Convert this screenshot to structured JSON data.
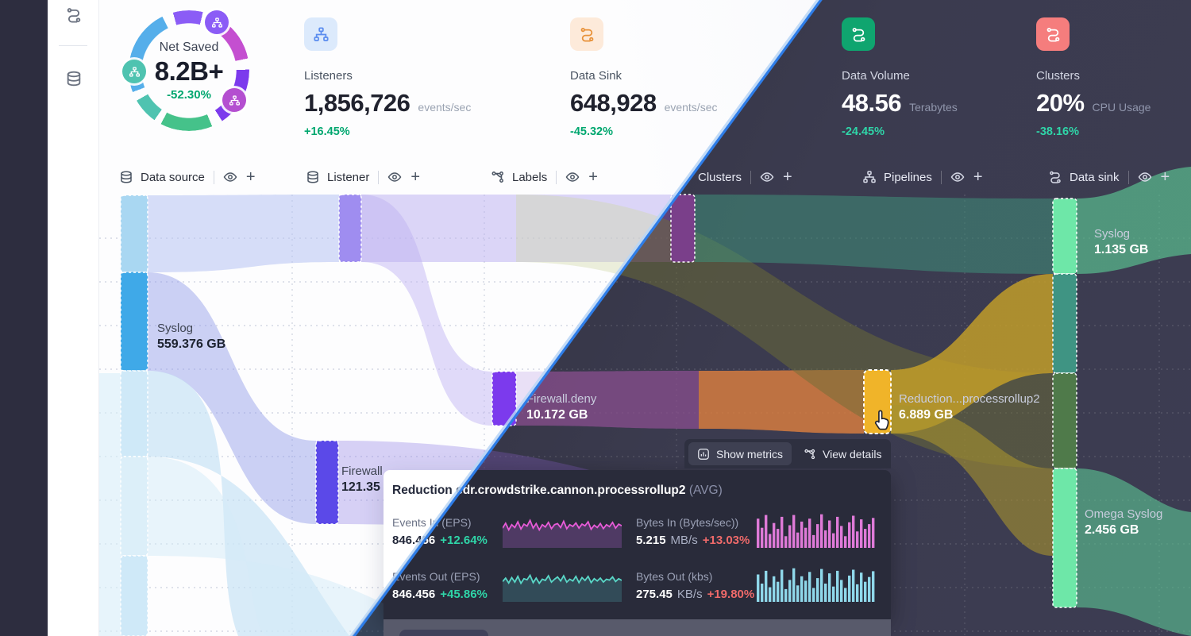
{
  "colors": {
    "positive_light": "#00a76f",
    "positive_dark": "#2fd5a8",
    "negative": "#ef6a6a",
    "split_line_blue": "#2e7de8",
    "highlight_gold": "#f0b429"
  },
  "sidebar": {
    "icons": [
      "route-icon",
      "database-icon"
    ]
  },
  "stats": {
    "net_saved": {
      "label": "Net Saved",
      "value": "8.2B+",
      "delta": "-52.30%"
    },
    "cards": [
      {
        "label": "Listeners",
        "value": "1,856,726",
        "unit": "events/sec",
        "delta": "+16.45%"
      },
      {
        "label": "Data Sink",
        "value": "648,928",
        "unit": "events/sec",
        "delta": "-45.32%"
      },
      {
        "label": "Data Volume",
        "value": "48.56",
        "unit": "Terabytes",
        "delta": "-24.45%"
      },
      {
        "label": "Clusters",
        "value": "20%",
        "unit": "CPU Usage",
        "delta": "-38.16%"
      }
    ]
  },
  "toolbar": {
    "items": [
      {
        "label": "Data source",
        "icon": "database-icon"
      },
      {
        "label": "Listener",
        "icon": "database-icon"
      },
      {
        "label": "Labels",
        "icon": "branch-icon"
      },
      {
        "label": "Clusters",
        "icon": "database-icon"
      },
      {
        "label": "Pipelines",
        "icon": "sitemap-icon"
      },
      {
        "label": "Data sink",
        "icon": "route-icon"
      }
    ]
  },
  "sankey": {
    "nodes": [
      {
        "name": "Syslog",
        "value": "559.376 GB"
      },
      {
        "name": "Firewall",
        "value": "121.35 GB"
      },
      {
        "name": "Firewall.deny",
        "value": "10.172 GB"
      },
      {
        "name": "Reduction...processrollup2",
        "value": "6.889 GB"
      },
      {
        "name": "Syslog",
        "value": "1.135 GB"
      },
      {
        "name": "Omega Syslog",
        "value": "2.456 GB"
      }
    ]
  },
  "tooltip": {
    "show_metrics": "Show metrics",
    "view_details": "View details"
  },
  "panel": {
    "title": "Reduction edr.crowdstrike.cannon.processrollup2",
    "title_suffix": "(AVG)",
    "metrics": [
      {
        "label": "Events In (EPS)",
        "value": "846.456",
        "unit": "",
        "delta": "+12.64%"
      },
      {
        "label": "Bytes In (Bytes/sec))",
        "value": "5.215",
        "unit": "MB/s",
        "delta": "+13.03%"
      },
      {
        "label": "Events Out (EPS)",
        "value": "846.456",
        "unit": "",
        "delta": "+45.86%"
      },
      {
        "label": "Bytes Out (kbs)",
        "value": "275.45",
        "unit": "KB/s",
        "delta": "+19.80%"
      }
    ]
  },
  "sparks": {
    "events_in": {
      "type": "line",
      "color": "#e85bd8",
      "fill": "rgba(168,92,200,0.30)",
      "values": [
        58,
        75,
        52,
        70,
        60,
        80,
        55,
        72,
        65,
        85,
        58,
        74,
        52,
        70,
        62,
        78,
        56,
        70,
        74,
        60,
        82,
        56,
        70,
        64,
        76,
        58,
        72,
        66,
        80,
        54,
        68,
        60,
        74,
        56,
        70,
        63,
        78,
        58,
        72,
        66
      ]
    },
    "bytes_in": {
      "type": "bars",
      "color": "#df7ad8",
      "values": [
        80,
        55,
        90,
        38,
        68,
        52,
        85,
        32,
        62,
        90,
        42,
        72,
        55,
        80,
        35,
        65,
        92,
        48,
        75,
        40,
        85,
        60,
        32,
        70,
        88,
        45,
        78,
        52,
        65,
        82
      ]
    },
    "events_out": {
      "type": "line",
      "color": "#5ad8c8",
      "fill": "rgba(80,170,180,0.25)",
      "values": [
        60,
        72,
        55,
        74,
        58,
        78,
        54,
        70,
        66,
        82,
        56,
        72,
        54,
        68,
        64,
        80,
        58,
        68,
        76,
        62,
        80,
        58,
        68,
        62,
        78,
        56,
        74,
        64,
        78,
        56,
        70,
        62,
        72,
        58,
        68,
        65,
        76,
        60,
        70,
        64
      ]
    },
    "bytes_out": {
      "type": "bars",
      "color": "#8fd8ea",
      "values": [
        75,
        50,
        85,
        40,
        70,
        55,
        88,
        35,
        60,
        92,
        45,
        70,
        58,
        82,
        38,
        65,
        90,
        50,
        78,
        42,
        85,
        60,
        38,
        72,
        88,
        48,
        80,
        55,
        68,
        84
      ]
    }
  }
}
